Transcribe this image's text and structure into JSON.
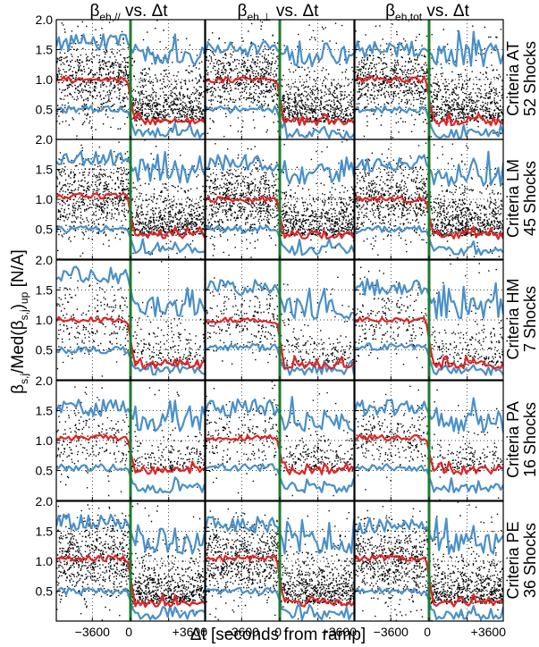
{
  "figure": {
    "column_titles": [
      {
        "base": "β",
        "sub": "eh,//",
        "suffix": " vs. Δt"
      },
      {
        "base": "β",
        "sub": "eh,⊥",
        "suffix": " vs. Δt"
      },
      {
        "base": "β",
        "sub": "eh,tot",
        "suffix": " vs. Δt"
      }
    ],
    "row_labels": [
      {
        "criteria": "Criteria AT",
        "shocks": "52 Shocks"
      },
      {
        "criteria": "Criteria LM",
        "shocks": "45 Shocks"
      },
      {
        "criteria": "Criteria HM",
        "shocks": "7 Shocks"
      },
      {
        "criteria": "Criteria PA",
        "shocks": "16 Shocks"
      },
      {
        "criteria": "Criteria PE",
        "shocks": "36 Shocks"
      }
    ],
    "ylabel": {
      "p1": "β",
      "s1": "s,j",
      "p2": "/Med(β",
      "s2": "s,j",
      "p3": ")",
      "s3": "up",
      "p4": " [N/A]"
    },
    "xlabel": "Δt [seconds from ramp]",
    "y_ticks": [
      "0.5",
      "1.0",
      "1.5",
      "2.0"
    ],
    "x_ticks": [
      "−3600",
      "0",
      "+3600"
    ]
  },
  "chart_data": {
    "type": "scatter",
    "grid": "dotted",
    "xlim": [
      -7000,
      7000
    ],
    "ylim": [
      0,
      2.0
    ],
    "y_tick_values": [
      0.5,
      1.0,
      1.5,
      2.0
    ],
    "x_tick_values": [
      -3600,
      0,
      3600
    ],
    "vertical_line_x": 0,
    "colors": {
      "points": "#000000",
      "median": "#e02424",
      "quartiles": "#4a90c8",
      "ramp_line": "#1f7a2e"
    },
    "panels": [
      {
        "row": 0,
        "col": 0,
        "upstream_median": 1.0,
        "downstream_median": 0.3,
        "upstream_upper": 1.62,
        "downstream_upper": 1.4,
        "upstream_lower": 0.5,
        "downstream_lower": 0.1
      },
      {
        "row": 0,
        "col": 1,
        "upstream_median": 1.0,
        "downstream_median": 0.3,
        "upstream_upper": 1.5,
        "downstream_upper": 1.4,
        "upstream_lower": 0.5,
        "downstream_lower": 0.1
      },
      {
        "row": 0,
        "col": 2,
        "upstream_median": 1.0,
        "downstream_median": 0.3,
        "upstream_upper": 1.5,
        "downstream_upper": 1.4,
        "upstream_lower": 0.5,
        "downstream_lower": 0.1
      },
      {
        "row": 1,
        "col": 0,
        "upstream_median": 1.05,
        "downstream_median": 0.4,
        "upstream_upper": 1.7,
        "downstream_upper": 1.4,
        "upstream_lower": 0.5,
        "downstream_lower": 0.15
      },
      {
        "row": 1,
        "col": 1,
        "upstream_median": 1.0,
        "downstream_median": 0.4,
        "upstream_upper": 1.6,
        "downstream_upper": 1.4,
        "upstream_lower": 0.5,
        "downstream_lower": 0.15
      },
      {
        "row": 1,
        "col": 2,
        "upstream_median": 1.0,
        "downstream_median": 0.4,
        "upstream_upper": 1.6,
        "downstream_upper": 1.4,
        "upstream_lower": 0.5,
        "downstream_lower": 0.15
      },
      {
        "row": 2,
        "col": 0,
        "upstream_median": 1.0,
        "downstream_median": 0.25,
        "upstream_upper": 1.75,
        "downstream_upper": 1.2,
        "upstream_lower": 0.5,
        "downstream_lower": 0.15
      },
      {
        "row": 2,
        "col": 1,
        "upstream_median": 1.0,
        "downstream_median": 0.25,
        "upstream_upper": 1.55,
        "downstream_upper": 1.2,
        "upstream_lower": 0.55,
        "downstream_lower": 0.15
      },
      {
        "row": 2,
        "col": 2,
        "upstream_median": 1.0,
        "downstream_median": 0.25,
        "upstream_upper": 1.55,
        "downstream_upper": 1.2,
        "upstream_lower": 0.55,
        "downstream_lower": 0.15
      },
      {
        "row": 3,
        "col": 0,
        "upstream_median": 1.05,
        "downstream_median": 0.5,
        "upstream_upper": 1.55,
        "downstream_upper": 1.3,
        "upstream_lower": 0.55,
        "downstream_lower": 0.2
      },
      {
        "row": 3,
        "col": 1,
        "upstream_median": 1.05,
        "downstream_median": 0.5,
        "upstream_upper": 1.55,
        "downstream_upper": 1.3,
        "upstream_lower": 0.55,
        "downstream_lower": 0.2
      },
      {
        "row": 3,
        "col": 2,
        "upstream_median": 1.05,
        "downstream_median": 0.5,
        "upstream_upper": 1.55,
        "downstream_upper": 1.3,
        "upstream_lower": 0.55,
        "downstream_lower": 0.2
      },
      {
        "row": 4,
        "col": 0,
        "upstream_median": 1.05,
        "downstream_median": 0.3,
        "upstream_upper": 1.65,
        "downstream_upper": 1.3,
        "upstream_lower": 0.5,
        "downstream_lower": 0.1
      },
      {
        "row": 4,
        "col": 1,
        "upstream_median": 1.05,
        "downstream_median": 0.3,
        "upstream_upper": 1.6,
        "downstream_upper": 1.3,
        "upstream_lower": 0.5,
        "downstream_lower": 0.1
      },
      {
        "row": 4,
        "col": 2,
        "upstream_median": 1.05,
        "downstream_median": 0.3,
        "upstream_upper": 1.6,
        "downstream_upper": 1.3,
        "upstream_lower": 0.5,
        "downstream_lower": 0.1
      }
    ]
  }
}
